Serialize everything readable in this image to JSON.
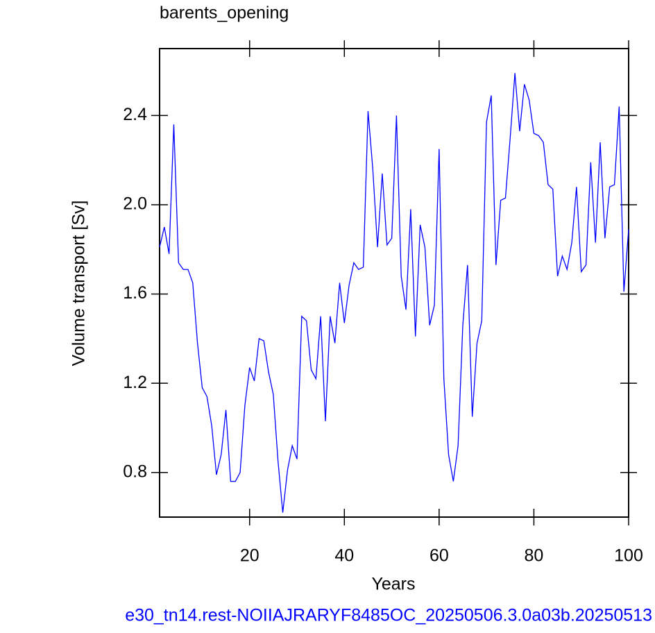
{
  "chart_data": {
    "type": "line",
    "title": "barents_opening",
    "x_label": "Years",
    "y_label": "Volume transport [Sv]",
    "footer": "e30_tn14.rest-NOIIAJRARYF8485OC_20250506.3.0a03b.20250513",
    "x": [
      1,
      2,
      3,
      4,
      5,
      6,
      7,
      8,
      9,
      10,
      11,
      12,
      13,
      14,
      15,
      16,
      17,
      18,
      19,
      20,
      21,
      22,
      23,
      24,
      25,
      26,
      27,
      28,
      29,
      30,
      31,
      32,
      33,
      34,
      35,
      36,
      37,
      38,
      39,
      40,
      41,
      42,
      43,
      44,
      45,
      46,
      47,
      48,
      49,
      50,
      51,
      52,
      53,
      54,
      55,
      56,
      57,
      58,
      59,
      60,
      61,
      62,
      63,
      64,
      65,
      66,
      67,
      68,
      69,
      70,
      71,
      72,
      73,
      74,
      75,
      76,
      77,
      78,
      79,
      80,
      81,
      82,
      83,
      84,
      85,
      86,
      87,
      88,
      89,
      90,
      91,
      92,
      93,
      94,
      95,
      96,
      97,
      98,
      99,
      100
    ],
    "series": [
      {
        "name": "barents_opening",
        "color": "#0000ff",
        "values": [
          1.81,
          1.9,
          1.78,
          2.36,
          1.74,
          1.71,
          1.71,
          1.65,
          1.38,
          1.18,
          1.14,
          1.01,
          0.79,
          0.88,
          1.08,
          0.76,
          0.76,
          0.8,
          1.1,
          1.27,
          1.21,
          1.4,
          1.39,
          1.25,
          1.15,
          0.85,
          0.62,
          0.81,
          0.92,
          0.86,
          1.5,
          1.48,
          1.26,
          1.22,
          1.5,
          1.03,
          1.5,
          1.38,
          1.65,
          1.47,
          1.64,
          1.74,
          1.71,
          1.72,
          2.42,
          2.16,
          1.81,
          2.14,
          1.82,
          1.85,
          2.4,
          1.68,
          1.53,
          1.98,
          1.41,
          1.91,
          1.81,
          1.46,
          1.55,
          2.25,
          1.22,
          0.88,
          0.76,
          0.92,
          1.46,
          1.73,
          1.05,
          1.38,
          1.48,
          2.37,
          2.49,
          1.73,
          2.02,
          2.03,
          2.3,
          2.59,
          2.33,
          2.54,
          2.47,
          2.32,
          2.31,
          2.28,
          2.09,
          2.07,
          1.68,
          1.77,
          1.71,
          1.83,
          2.08,
          1.7,
          1.73,
          2.19,
          1.83,
          2.28,
          1.85,
          2.08,
          2.09,
          2.44,
          1.61,
          1.89
        ]
      }
    ],
    "xlim": [
      1,
      100
    ],
    "ylim": [
      0.6,
      2.7
    ],
    "xticks": [
      20,
      40,
      60,
      80,
      100
    ],
    "yticks": [
      0.8,
      1.2,
      1.6,
      {
        "value": 2,
        "label": "2.0"
      },
      2.4
    ]
  }
}
